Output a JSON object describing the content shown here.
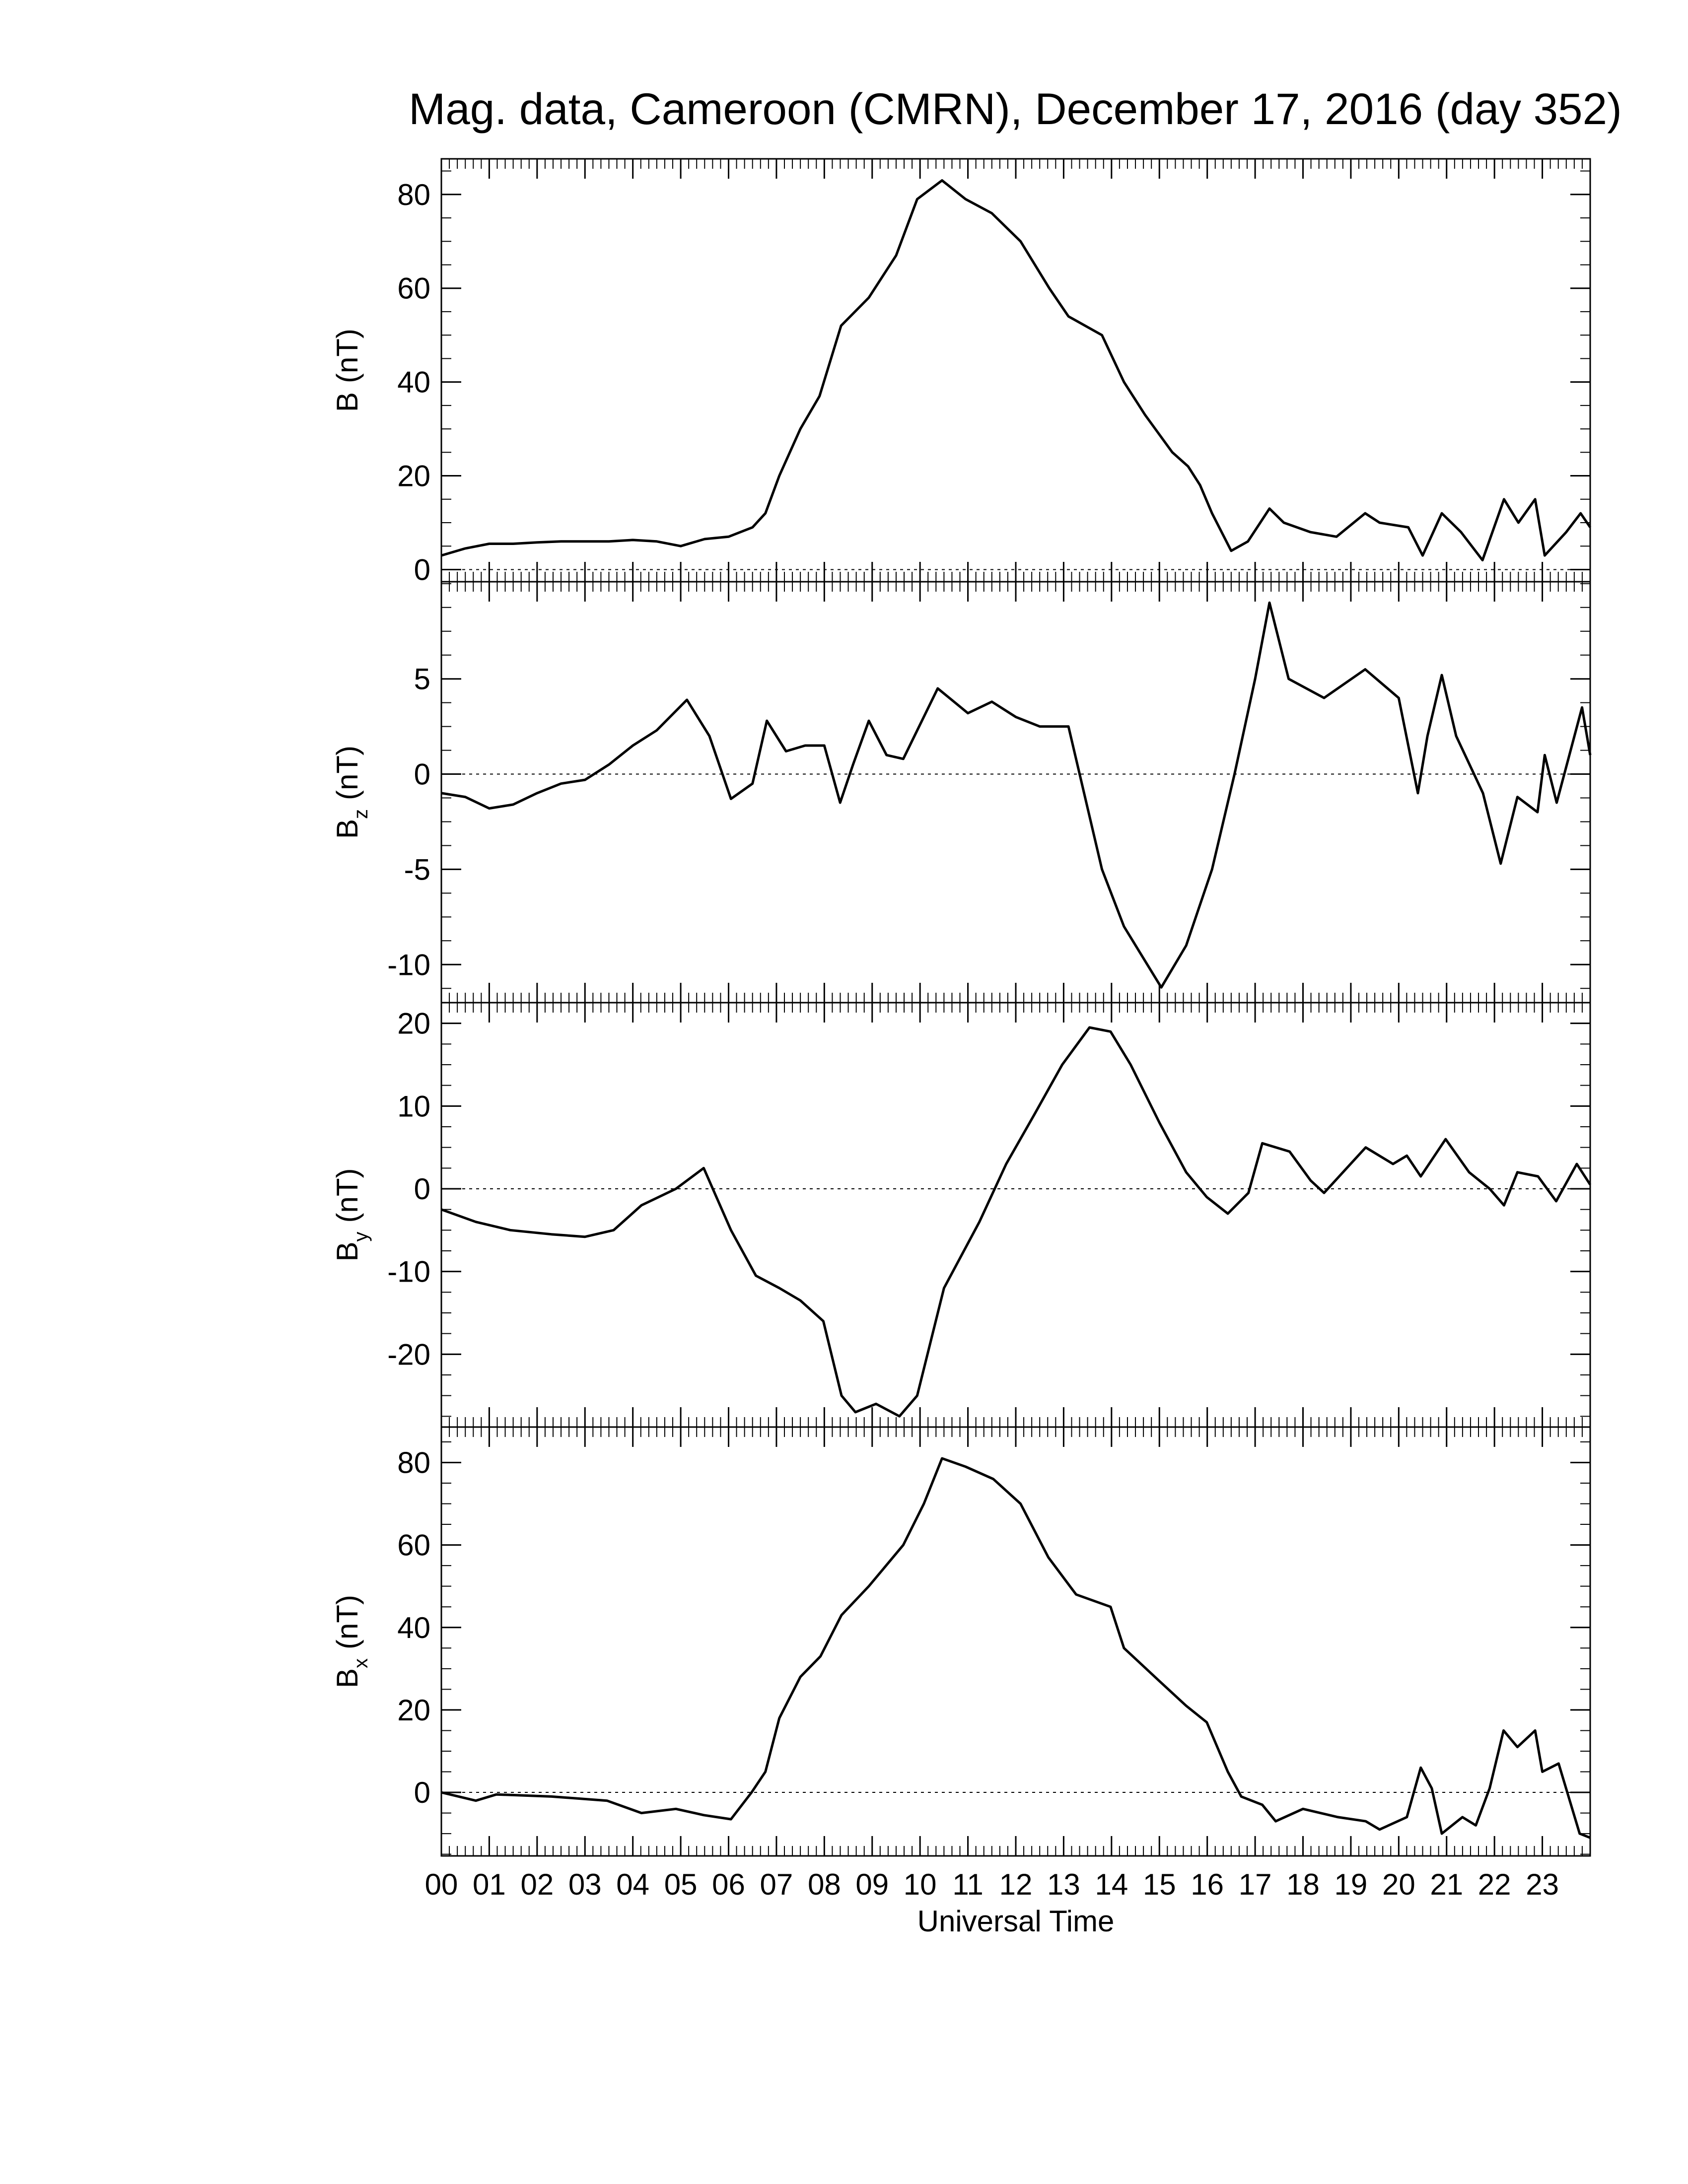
{
  "chart_data": [
    {
      "type": "line",
      "title": "Mag. data, Cameroon (CMRN), December 17, 2016 (day 352)",
      "ylabel": {
        "base": "B",
        "unit": "(nT)"
      },
      "color": "#000000",
      "zeroline": true,
      "xlim": [
        0,
        24
      ],
      "ylim": [
        -2.6,
        87.6
      ],
      "yticks": [
        0,
        20,
        40,
        60,
        80
      ],
      "x": [
        0,
        0.5,
        1,
        1.5,
        2,
        2.5,
        3,
        3.5,
        4,
        4.5,
        5,
        5.5,
        6,
        6.5,
        6.77,
        7.06,
        7.5,
        7.9,
        8.35,
        8.93,
        9.5,
        9.94,
        10.46,
        10.95,
        11.5,
        12.1,
        12.7,
        13.1,
        13.8,
        14.26,
        14.7,
        15.27,
        15.6,
        15.85,
        16.1,
        16.5,
        16.85,
        17.3,
        17.6,
        18.15,
        18.7,
        19.3,
        19.6,
        20.2,
        20.5,
        20.9,
        21.3,
        21.75,
        22.2,
        22.5,
        22.85,
        23.05,
        23.5,
        23.8,
        24
      ],
      "values": [
        3,
        4.5,
        5.5,
        5.5,
        5.8,
        6,
        6,
        6,
        6.3,
        6,
        5,
        6.5,
        7,
        9,
        12,
        20,
        30,
        37,
        52,
        58,
        67,
        79,
        83,
        79,
        76,
        70,
        60,
        54,
        50,
        40,
        33,
        25,
        22,
        18,
        12,
        4,
        6,
        13,
        10,
        8,
        7,
        12,
        10,
        9,
        3,
        12,
        8,
        2,
        15,
        10,
        15,
        3,
        8,
        12,
        9
      ]
    },
    {
      "type": "line",
      "ylabel": {
        "base": "B",
        "sub": "z",
        "unit": "(nT)"
      },
      "color": "#000000",
      "zeroline": true,
      "xlim": [
        0,
        24
      ],
      "ylim": [
        -12.0,
        10.1
      ],
      "yticks": [
        -10,
        -5,
        0,
        5
      ],
      "x": [
        0,
        0.5,
        1,
        1.5,
        2,
        2.5,
        3,
        3.5,
        4,
        4.5,
        5.13,
        5.6,
        6.05,
        6.5,
        6.8,
        7.2,
        7.6,
        8,
        8.33,
        8.6,
        8.93,
        9.3,
        9.65,
        10.37,
        11,
        11.5,
        12,
        12.5,
        13.1,
        13.8,
        14.26,
        15.04,
        15.56,
        16.1,
        16.57,
        17.0,
        17.3,
        17.7,
        18.44,
        19.3,
        20.0,
        20.4,
        20.6,
        20.9,
        21.2,
        21.76,
        22.13,
        22.48,
        22.9,
        23.05,
        23.3,
        23.83,
        24
      ],
      "values": [
        -1,
        -1.2,
        -1.8,
        -1.6,
        -1,
        -0.5,
        -0.3,
        0.5,
        1.5,
        2.3,
        3.9,
        2,
        -1.3,
        -0.5,
        2.8,
        1.2,
        1.5,
        1.5,
        -1.5,
        0.5,
        2.8,
        1,
        0.8,
        4.5,
        3.2,
        3.8,
        3,
        2.5,
        2.5,
        -5,
        -8,
        -11.2,
        -9,
        -5,
        0,
        5,
        9,
        5,
        4,
        5.5,
        4,
        -1,
        2,
        5.2,
        2,
        -1,
        -4.7,
        -1.2,
        -2,
        1,
        -1.5,
        3.5,
        1
      ]
    },
    {
      "type": "line",
      "ylabel": {
        "base": "B",
        "sub": "y",
        "unit": "(nT)"
      },
      "color": "#000000",
      "zeroline": true,
      "xlim": [
        0,
        24
      ],
      "ylim": [
        -28.8,
        22.5
      ],
      "yticks": [
        -20,
        -10,
        0,
        10,
        20
      ],
      "x": [
        0,
        0.72,
        1.44,
        2.3,
        3.0,
        3.6,
        4.18,
        4.9,
        5.48,
        6.05,
        6.57,
        7.06,
        7.5,
        7.98,
        8.36,
        8.65,
        9.08,
        9.57,
        9.94,
        10.5,
        11.24,
        11.8,
        12.39,
        12.97,
        13.54,
        13.98,
        14.4,
        15.0,
        15.56,
        15.99,
        16.43,
        16.86,
        17.15,
        17.72,
        18.16,
        18.44,
        19.31,
        19.88,
        20.17,
        20.46,
        20.98,
        21.47,
        21.9,
        22.2,
        22.48,
        22.91,
        23.29,
        23.72,
        24
      ],
      "values": [
        -2.5,
        -4,
        -5,
        -5.5,
        -5.8,
        -5,
        -2,
        0,
        2.5,
        -5,
        -10.5,
        -12,
        -13.5,
        -16,
        -25,
        -27,
        -26,
        -27.5,
        -25,
        -12,
        -4,
        3,
        9,
        15,
        19.5,
        19,
        15,
        8,
        2,
        -1,
        -3,
        -0.5,
        5.5,
        4.5,
        1,
        -0.5,
        5,
        3,
        4,
        1.5,
        6,
        2,
        0,
        -2,
        2,
        1.5,
        -1.5,
        3,
        0.5
      ]
    },
    {
      "type": "line",
      "ylabel": {
        "base": "B",
        "sub": "x",
        "unit": "(nT)"
      },
      "color": "#000000",
      "zeroline": true,
      "xlabel": "Universal Time",
      "xlim": [
        0,
        24
      ],
      "ylim": [
        -15.4,
        88.6
      ],
      "yticks": [
        0,
        20,
        40,
        60,
        80
      ],
      "xticks": [
        {
          "value": 0,
          "label": "00"
        },
        {
          "value": 1,
          "label": "01"
        },
        {
          "value": 2,
          "label": "02"
        },
        {
          "value": 3,
          "label": "03"
        },
        {
          "value": 4,
          "label": "04"
        },
        {
          "value": 5,
          "label": "05"
        },
        {
          "value": 6,
          "label": "06"
        },
        {
          "value": 7,
          "label": "07"
        },
        {
          "value": 8,
          "label": "08"
        },
        {
          "value": 9,
          "label": "09"
        },
        {
          "value": 10,
          "label": "10"
        },
        {
          "value": 11,
          "label": "11"
        },
        {
          "value": 12,
          "label": "12"
        },
        {
          "value": 13,
          "label": "13"
        },
        {
          "value": 14,
          "label": "14"
        },
        {
          "value": 15,
          "label": "15"
        },
        {
          "value": 16,
          "label": "16"
        },
        {
          "value": 17,
          "label": "17"
        },
        {
          "value": 18,
          "label": "18"
        },
        {
          "value": 19,
          "label": "19"
        },
        {
          "value": 20,
          "label": "20"
        },
        {
          "value": 21,
          "label": "21"
        },
        {
          "value": 22,
          "label": "22"
        },
        {
          "value": 23,
          "label": "23"
        }
      ],
      "x": [
        0,
        0.72,
        1.15,
        2.3,
        3.46,
        4.18,
        4.9,
        5.48,
        6.05,
        6.48,
        6.77,
        7.06,
        7.5,
        7.92,
        8.36,
        8.93,
        9.65,
        10.08,
        10.46,
        10.95,
        11.53,
        12.1,
        12.68,
        13.26,
        13.98,
        14.26,
        15.0,
        15.56,
        15.99,
        16.43,
        16.71,
        17.15,
        17.43,
        18.0,
        18.73,
        19.31,
        19.6,
        20.17,
        20.46,
        20.69,
        20.9,
        21.33,
        21.61,
        21.9,
        22.19,
        22.48,
        22.85,
        23.0,
        23.34,
        23.78,
        24
      ],
      "values": [
        0,
        -2,
        -0.5,
        -1,
        -2,
        -5,
        -4,
        -5.5,
        -6.5,
        0,
        5,
        18,
        28,
        33,
        43,
        50,
        60,
        70,
        81,
        79,
        76,
        70,
        57,
        48,
        45,
        35,
        27,
        21,
        17,
        5,
        -1,
        -3,
        -7,
        -4,
        -6,
        -7,
        -9,
        -6,
        6,
        1,
        -10,
        -6,
        -8,
        1,
        15,
        11,
        15,
        5,
        7,
        -10,
        -11
      ]
    }
  ]
}
